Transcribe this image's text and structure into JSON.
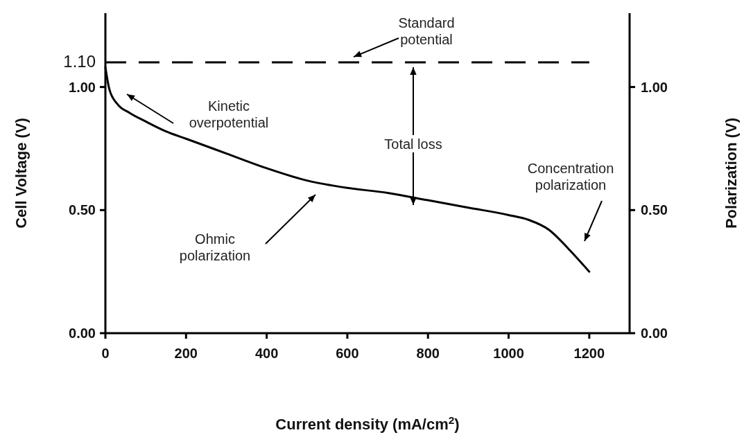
{
  "chart_data": {
    "type": "line",
    "xlabel": "Current density (mA/cm$^{2}$)",
    "ylabel": "Cell Voltage (V)",
    "y2label": "Polarization (V)",
    "x": [
      0,
      10,
      30,
      60,
      100,
      150,
      200,
      300,
      400,
      500,
      600,
      700,
      800,
      900,
      1000,
      1050,
      1100,
      1150,
      1200
    ],
    "series": [
      {
        "color": "#000000",
        "values": [
          1.08,
          0.99,
          0.93,
          0.895,
          0.86,
          0.82,
          0.79,
          0.73,
          0.67,
          0.62,
          0.59,
          0.57,
          0.54,
          0.51,
          0.48,
          0.46,
          0.42,
          0.34,
          0.25
        ]
      }
    ],
    "xlim": [
      0,
      1300
    ],
    "xticks": [
      0,
      200,
      400,
      600,
      800,
      1000,
      1200
    ],
    "ylim": [
      0,
      1.3
    ],
    "yticks": [
      {
        "value": 0,
        "label": "0.00"
      },
      {
        "value": 0.5,
        "label": "0.50"
      },
      {
        "value": 1,
        "label": "1.00"
      },
      {
        "value": 1.1,
        "label": "1.10"
      }
    ],
    "y2lim": [
      0,
      1.3
    ],
    "y2ticks": [
      {
        "value": 0,
        "label": "0.00"
      },
      {
        "value": 0.5,
        "label": "0.50"
      },
      {
        "value": 1,
        "label": "1.00"
      }
    ],
    "ref_lines": [
      {
        "axis": "y",
        "value": 1.1,
        "label": "Standard potential",
        "line_style": "dashed",
        "color": "#000000"
      }
    ],
    "annotations": [
      "Kinetic overpotential",
      "Total loss",
      "Ohmic polarization",
      "Concentration polarization"
    ],
    "line_style": "solid"
  }
}
